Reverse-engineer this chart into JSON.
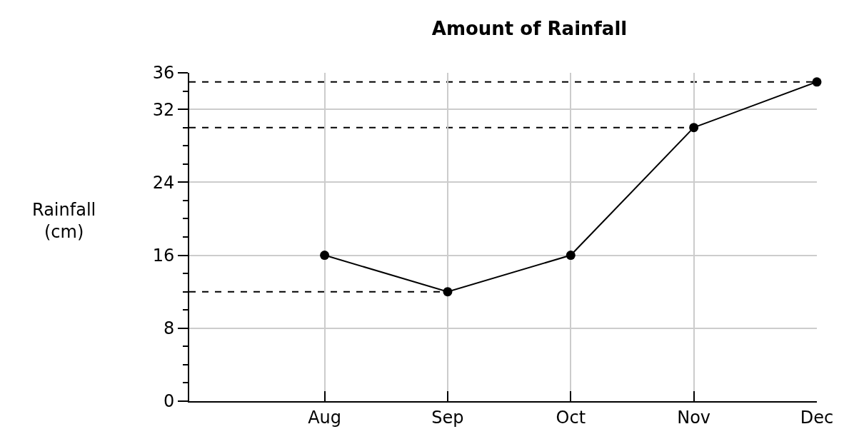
{
  "chart_data": {
    "type": "line",
    "title": "Amount of Rainfall",
    "ylabel": "Rainfall\n(cm)",
    "categories": [
      "Aug",
      "Sep",
      "Oct",
      "Nov",
      "Dec"
    ],
    "series": [
      {
        "color": "#000000",
        "values": [
          16,
          12,
          16,
          30,
          35
        ]
      }
    ],
    "ylim": [
      0,
      36
    ],
    "yticks": [
      0,
      8,
      16,
      24,
      32,
      36
    ],
    "ref_lines": [
      {
        "axis": "y",
        "value": 12,
        "line_style": "dashed",
        "color": "#000000"
      },
      {
        "axis": "y",
        "value": 30,
        "line_style": "dashed",
        "color": "#000000"
      },
      {
        "axis": "y",
        "value": 35,
        "line_style": "dashed",
        "color": "#000000"
      }
    ],
    "grid": true,
    "marker": "circle",
    "line_style": "solid"
  }
}
